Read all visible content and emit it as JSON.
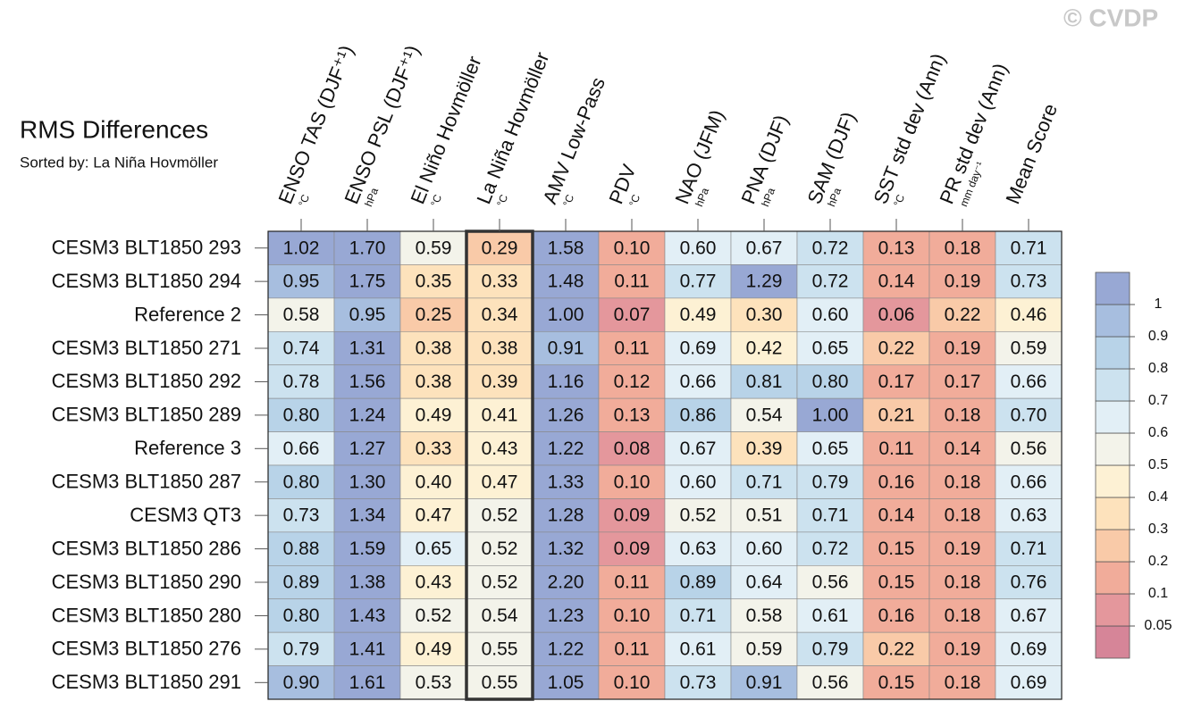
{
  "chart_data": {
    "type": "heatmap",
    "title": "RMS Differences",
    "subtitle": "Sorted by: La Niña Hovmöller",
    "watermark": "© CVDP",
    "columns": [
      {
        "name": "ENSO TAS (DJF⁺¹)",
        "unit": "°C"
      },
      {
        "name": "ENSO PSL (DJF⁺¹)",
        "unit": "hPa"
      },
      {
        "name": "El Niño Hovmöller",
        "unit": "°C"
      },
      {
        "name": "La Niña Hovmöller",
        "unit": "°C"
      },
      {
        "name": "AMV Low-Pass",
        "unit": "°C"
      },
      {
        "name": "PDV",
        "unit": "°C"
      },
      {
        "name": "NAO (JFM)",
        "unit": "hPa"
      },
      {
        "name": "PNA (DJF)",
        "unit": "hPa"
      },
      {
        "name": "SAM (DJF)",
        "unit": "hPa"
      },
      {
        "name": "SST std dev (Ann)",
        "unit": "°C"
      },
      {
        "name": "PR std dev (Ann)",
        "unit": "mm day⁻¹"
      },
      {
        "name": "Mean Score"
      }
    ],
    "highlight_column": 3,
    "rows": [
      "CESM3 BLT1850 293",
      "CESM3 BLT1850 294",
      "Reference 2",
      "CESM3 BLT1850 271",
      "CESM3 BLT1850 292",
      "CESM3 BLT1850 289",
      "Reference 3",
      "CESM3 BLT1850 287",
      "CESM3 QT3",
      "CESM3 BLT1850 286",
      "CESM3 BLT1850 290",
      "CESM3 BLT1850 280",
      "CESM3 BLT1850 276",
      "CESM3 BLT1850 291"
    ],
    "values": [
      [
        1.02,
        1.7,
        0.59,
        0.29,
        1.58,
        0.1,
        0.6,
        0.67,
        0.72,
        0.13,
        0.18,
        0.71
      ],
      [
        0.95,
        1.75,
        0.35,
        0.33,
        1.48,
        0.11,
        0.77,
        1.29,
        0.72,
        0.14,
        0.19,
        0.73
      ],
      [
        0.58,
        0.95,
        0.25,
        0.34,
        1.0,
        0.07,
        0.49,
        0.3,
        0.6,
        0.06,
        0.22,
        0.46
      ],
      [
        0.74,
        1.31,
        0.38,
        0.38,
        0.91,
        0.11,
        0.69,
        0.42,
        0.65,
        0.22,
        0.19,
        0.59
      ],
      [
        0.78,
        1.56,
        0.38,
        0.39,
        1.16,
        0.12,
        0.66,
        0.81,
        0.8,
        0.17,
        0.17,
        0.66
      ],
      [
        0.8,
        1.24,
        0.49,
        0.41,
        1.26,
        0.13,
        0.86,
        0.54,
        1.0,
        0.21,
        0.18,
        0.7
      ],
      [
        0.66,
        1.27,
        0.33,
        0.43,
        1.22,
        0.08,
        0.67,
        0.39,
        0.65,
        0.11,
        0.14,
        0.56
      ],
      [
        0.8,
        1.3,
        0.4,
        0.47,
        1.33,
        0.1,
        0.6,
        0.71,
        0.79,
        0.16,
        0.18,
        0.66
      ],
      [
        0.73,
        1.34,
        0.47,
        0.52,
        1.28,
        0.09,
        0.52,
        0.51,
        0.71,
        0.14,
        0.18,
        0.63
      ],
      [
        0.88,
        1.59,
        0.65,
        0.52,
        1.32,
        0.09,
        0.63,
        0.6,
        0.72,
        0.15,
        0.19,
        0.71
      ],
      [
        0.89,
        1.38,
        0.43,
        0.52,
        2.2,
        0.11,
        0.89,
        0.64,
        0.56,
        0.15,
        0.18,
        0.76
      ],
      [
        0.8,
        1.43,
        0.52,
        0.54,
        1.23,
        0.1,
        0.71,
        0.58,
        0.61,
        0.16,
        0.18,
        0.67
      ],
      [
        0.79,
        1.41,
        0.49,
        0.55,
        1.22,
        0.11,
        0.61,
        0.59,
        0.79,
        0.22,
        0.19,
        0.69
      ],
      [
        0.9,
        1.61,
        0.53,
        0.55,
        1.05,
        0.1,
        0.73,
        0.91,
        0.56,
        0.15,
        0.18,
        0.69
      ]
    ],
    "value_labels": [
      [
        "1.02",
        "1.70",
        "0.59",
        "0.29",
        "1.58",
        "0.10",
        "0.60",
        "0.67",
        "0.72",
        "0.13",
        "0.18",
        "0.71"
      ],
      [
        "0.95",
        "1.75",
        "0.35",
        "0.33",
        "1.48",
        "0.11",
        "0.77",
        "1.29",
        "0.72",
        "0.14",
        "0.19",
        "0.73"
      ],
      [
        "0.58",
        "0.95",
        "0.25",
        "0.34",
        "1.00",
        "0.07",
        "0.49",
        "0.30",
        "0.60",
        "0.06",
        "0.22",
        "0.46"
      ],
      [
        "0.74",
        "1.31",
        "0.38",
        "0.38",
        "0.91",
        "0.11",
        "0.69",
        "0.42",
        "0.65",
        "0.22",
        "0.19",
        "0.59"
      ],
      [
        "0.78",
        "1.56",
        "0.38",
        "0.39",
        "1.16",
        "0.12",
        "0.66",
        "0.81",
        "0.80",
        "0.17",
        "0.17",
        "0.66"
      ],
      [
        "0.80",
        "1.24",
        "0.49",
        "0.41",
        "1.26",
        "0.13",
        "0.86",
        "0.54",
        "1.00",
        "0.21",
        "0.18",
        "0.70"
      ],
      [
        "0.66",
        "1.27",
        "0.33",
        "0.43",
        "1.22",
        "0.08",
        "0.67",
        "0.39",
        "0.65",
        "0.11",
        "0.14",
        "0.56"
      ],
      [
        "0.80",
        "1.30",
        "0.40",
        "0.47",
        "1.33",
        "0.10",
        "0.60",
        "0.71",
        "0.79",
        "0.16",
        "0.18",
        "0.66"
      ],
      [
        "0.73",
        "1.34",
        "0.47",
        "0.52",
        "1.28",
        "0.09",
        "0.52",
        "0.51",
        "0.71",
        "0.14",
        "0.18",
        "0.63"
      ],
      [
        "0.88",
        "1.59",
        "0.65",
        "0.52",
        "1.32",
        "0.09",
        "0.63",
        "0.60",
        "0.72",
        "0.15",
        "0.19",
        "0.71"
      ],
      [
        "0.89",
        "1.38",
        "0.43",
        "0.52",
        "2.20",
        "0.11",
        "0.89",
        "0.64",
        "0.56",
        "0.15",
        "0.18",
        "0.76"
      ],
      [
        "0.80",
        "1.43",
        "0.52",
        "0.54",
        "1.23",
        "0.10",
        "0.71",
        "0.58",
        "0.61",
        "0.16",
        "0.18",
        "0.67"
      ],
      [
        "0.79",
        "1.41",
        "0.49",
        "0.55",
        "1.22",
        "0.11",
        "0.61",
        "0.59",
        "0.79",
        "0.22",
        "0.19",
        "0.69"
      ],
      [
        "0.90",
        "1.61",
        "0.53",
        "0.55",
        "1.05",
        "0.10",
        "0.73",
        "0.91",
        "0.56",
        "0.15",
        "0.18",
        "0.69"
      ]
    ],
    "levels": [
      0.05,
      0.1,
      0.2,
      0.3,
      0.4,
      0.5,
      0.6,
      0.7,
      0.8,
      0.9,
      1
    ],
    "colors": [
      "#d68598",
      "#e4979c",
      "#f1ac9a",
      "#f9caa8",
      "#fde2bc",
      "#fdf1d4",
      "#f3f3ea",
      "#e2eff6",
      "#cce2ef",
      "#b8d3e8",
      "#a7bedf",
      "#98a8d4"
    ]
  }
}
